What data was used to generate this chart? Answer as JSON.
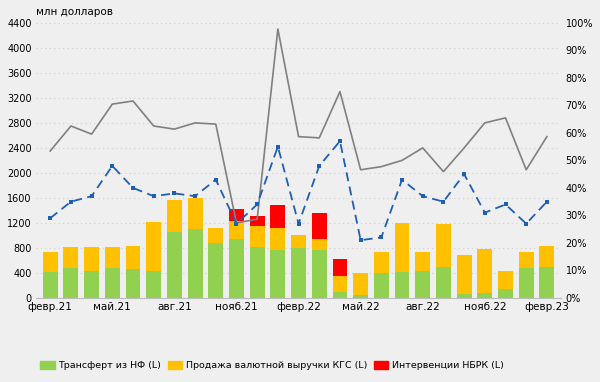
{
  "x_bar_positions": [
    0,
    1,
    2,
    3,
    4,
    5,
    6,
    7,
    8,
    9,
    10,
    11,
    12,
    13,
    14,
    15,
    16,
    17,
    18,
    19,
    20,
    21,
    22,
    23,
    24
  ],
  "green_bars": [
    420,
    480,
    430,
    480,
    460,
    430,
    1050,
    1100,
    880,
    950,
    820,
    760,
    800,
    760,
    100,
    40,
    400,
    420,
    430,
    500,
    60,
    80,
    150,
    480,
    490
  ],
  "yellow_bars": [
    310,
    340,
    390,
    340,
    370,
    780,
    520,
    500,
    240,
    280,
    330,
    360,
    200,
    180,
    250,
    360,
    340,
    780,
    310,
    680,
    620,
    700,
    280,
    250,
    340
  ],
  "red_bars": [
    0,
    0,
    0,
    0,
    0,
    0,
    0,
    0,
    0,
    190,
    160,
    370,
    0,
    420,
    280,
    0,
    0,
    0,
    0,
    0,
    0,
    0,
    0,
    0,
    0
  ],
  "grey_line": [
    2350,
    2750,
    2620,
    3100,
    3150,
    2750,
    2700,
    2800,
    2780,
    1200,
    1260,
    4300,
    2580,
    2560,
    3300,
    2050,
    2100,
    2200,
    2400,
    2020,
    2400,
    2800,
    2880,
    2050,
    2580
  ],
  "blue_dashed": [
    29,
    35,
    37,
    48,
    40,
    37,
    38,
    37,
    43,
    27,
    34,
    55,
    27,
    48,
    57,
    21,
    22,
    43,
    37,
    35,
    45,
    31,
    34,
    27,
    35
  ],
  "ylabel_left": "млн долларов",
  "ylim_left": [
    0,
    4400
  ],
  "ylim_right": [
    0,
    100
  ],
  "yticks_left": [
    0,
    400,
    800,
    1200,
    1600,
    2000,
    2400,
    2800,
    3200,
    3600,
    4000,
    4400
  ],
  "yticks_right": [
    0,
    10,
    20,
    30,
    40,
    50,
    60,
    70,
    80,
    90,
    100
  ],
  "legend_green": "Трансферт из НФ (L)",
  "legend_yellow": "Продажа валютной выручки КГС (L)",
  "legend_red": "Интервенции НБРК (L)",
  "color_green": "#92d050",
  "color_yellow": "#ffc000",
  "color_red": "#ff0000",
  "color_grey": "#808080",
  "color_blue": "#1f5eb5",
  "bg_color": "#efefef",
  "grid_color": "#d0d0d0",
  "x_tick_positions": [
    0,
    3,
    6,
    9,
    12,
    15,
    18,
    21,
    24
  ],
  "x_tick_labels": [
    "февр.21",
    "май.21",
    "авг.21",
    "нояб.21",
    "февр.22",
    "май.22",
    "авг.22",
    "нояб.22",
    "февр.23"
  ]
}
